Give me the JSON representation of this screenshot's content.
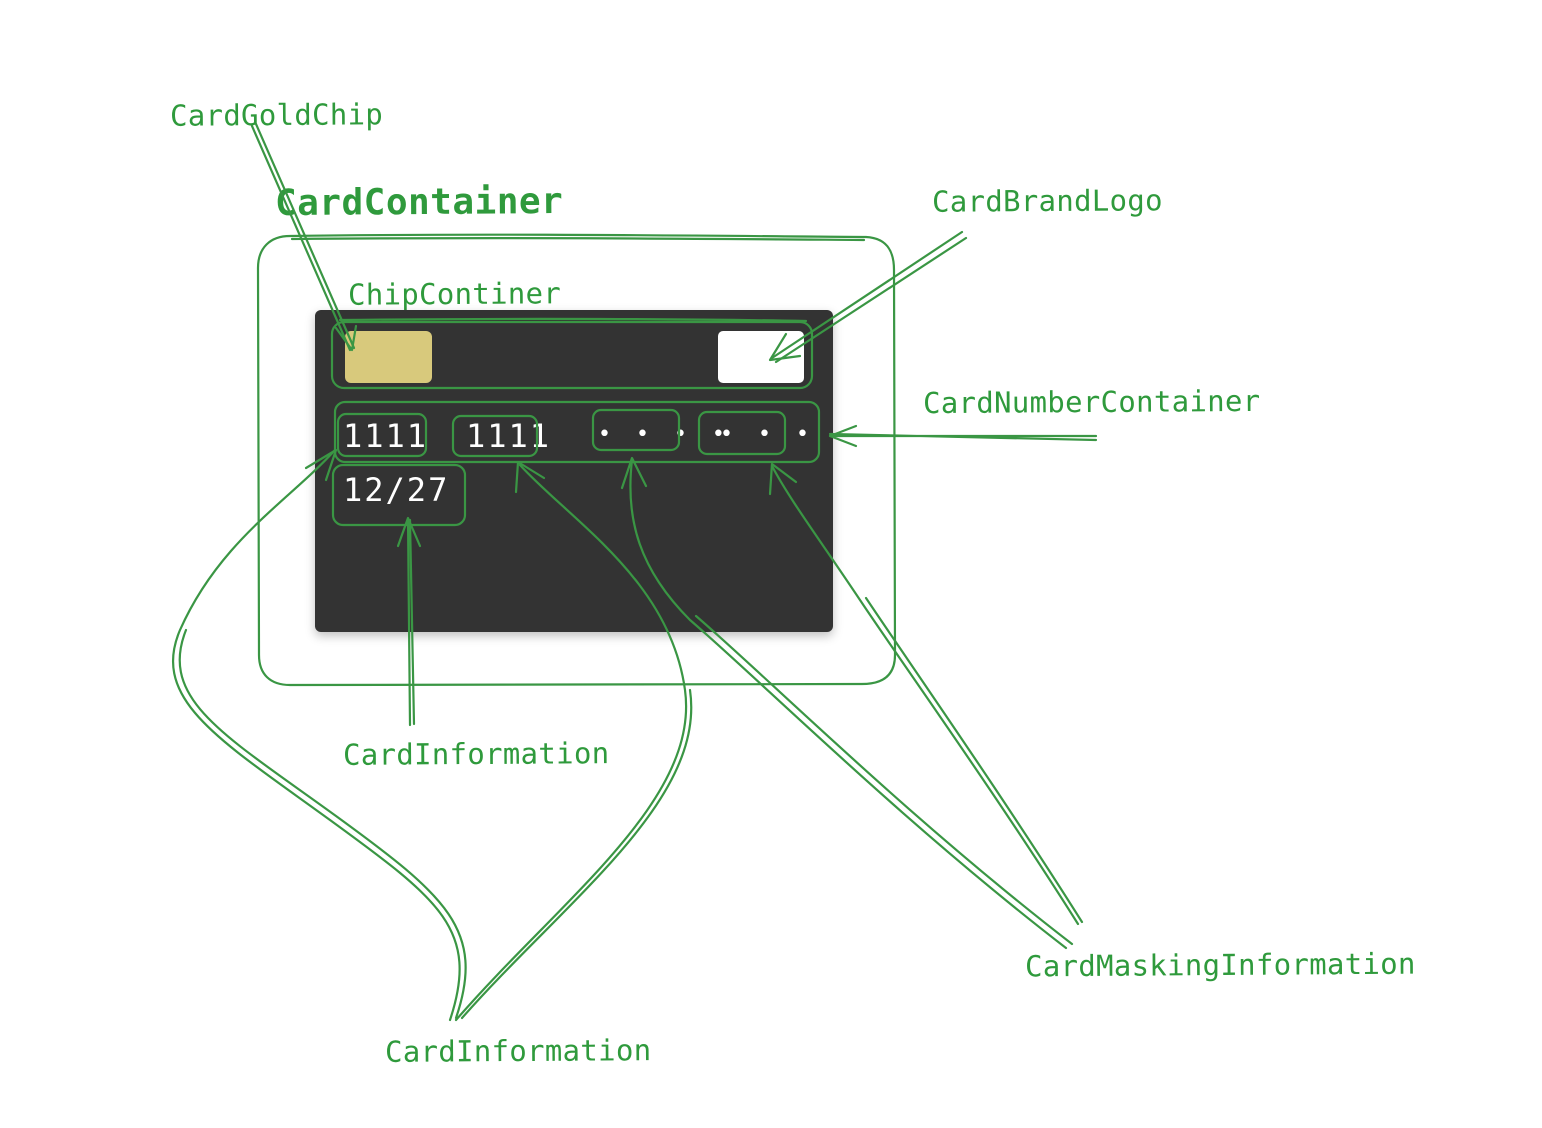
{
  "labels": {
    "card_gold_chip": "CardGoldChip",
    "card_container": "CardContainer",
    "chip_container": "ChipContiner",
    "card_brand_logo": "CardBrandLogo",
    "card_number_container": "CardNumberContainer",
    "card_information_1": "CardInformation",
    "card_information_2": "CardInformation",
    "card_masking_information": "CardMaskingInformation"
  },
  "card": {
    "number_group_1": "1111",
    "number_group_2": "1111",
    "masked_group_1": "• • • •",
    "masked_group_2": "• • • •",
    "expiry": "12/27"
  },
  "colors": {
    "annotation": "#3a9644",
    "card_background": "#333333",
    "chip": "#d8c97c",
    "brand_logo": "#ffffff"
  }
}
